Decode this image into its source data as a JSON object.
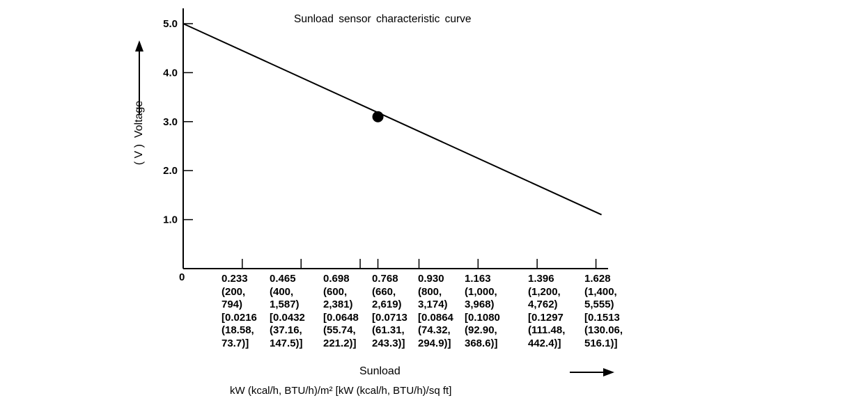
{
  "chart_data": {
    "type": "line",
    "title": "Sunload sensor characteristic curve",
    "xlabel": "Sunload",
    "xunits": "kW (kcal/h, BTU/h)/m² [kW (kcal/h, BTU/h)/sq ft]",
    "ylabel": "Voltage",
    "yunits": "( V )",
    "xlim": [
      0,
      1.67
    ],
    "ylim": [
      0,
      5.3
    ],
    "grid": false,
    "yticks": [
      {
        "value": 1.0,
        "label": "1.0"
      },
      {
        "value": 2.0,
        "label": "2.0"
      },
      {
        "value": 3.0,
        "label": "3.0"
      },
      {
        "value": 4.0,
        "label": "4.0"
      },
      {
        "value": 5.0,
        "label": "5.0"
      }
    ],
    "xorigin_label": "0",
    "xticks": [
      {
        "value": 0.233,
        "lines": [
          "0.233",
          "(200,",
          "794)",
          "[0.0216",
          "(18.58,",
          "73.7)]"
        ]
      },
      {
        "value": 0.465,
        "lines": [
          "0.465",
          "(400,",
          "1,587)",
          "[0.0432",
          "(37.16,",
          "147.5)]"
        ]
      },
      {
        "value": 0.698,
        "lines": [
          "0.698",
          "(600,",
          "2,381)",
          "[0.0648",
          "(55.74,",
          "221.2)]"
        ]
      },
      {
        "value": 0.768,
        "lines": [
          "0.768",
          "(660,",
          "2,619)",
          "[0.0713",
          "(61.31,",
          "243.3)]"
        ]
      },
      {
        "value": 0.93,
        "lines": [
          "0.930",
          "(800,",
          "3,174)",
          "[0.0864",
          "(74.32,",
          "294.9)]"
        ]
      },
      {
        "value": 1.163,
        "lines": [
          "1.163",
          "(1,000,",
          "3,968)",
          "[0.1080",
          "(92.90,",
          "368.6)]"
        ]
      },
      {
        "value": 1.396,
        "lines": [
          "1.396",
          "(1,200,",
          "4,762)",
          "[0.1297",
          "(111.48,",
          "442.4)]"
        ]
      },
      {
        "value": 1.628,
        "lines": [
          "1.628",
          "(1,400,",
          "5,555)",
          "[0.1513",
          "(130.06,",
          "516.1)]"
        ]
      }
    ],
    "series": [
      {
        "x": [
          0,
          1.65
        ],
        "y": [
          5.0,
          1.1
        ]
      }
    ],
    "marker": {
      "x": 0.768,
      "y": 3.1
    },
    "color": "#000000"
  }
}
